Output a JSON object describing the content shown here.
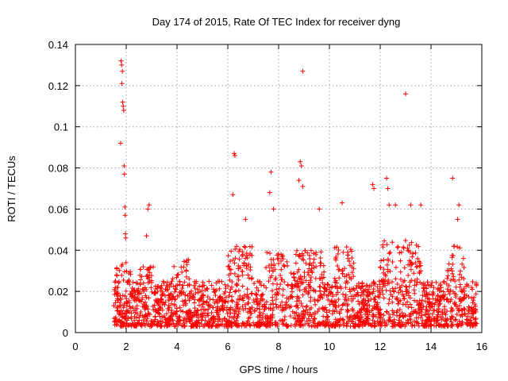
{
  "chart_data": {
    "type": "scatter",
    "title": "Day 174 of 2015, Rate Of TEC Index for receiver dyng",
    "xlabel": "GPS time / hours",
    "ylabel": "ROTI / TECUs",
    "xlim": [
      0,
      16
    ],
    "ylim": [
      0,
      0.14
    ],
    "xticks": [
      0,
      2,
      4,
      6,
      8,
      10,
      12,
      14,
      16
    ],
    "yticks": [
      0,
      0.02,
      0.04,
      0.06,
      0.08,
      0.1,
      0.12,
      0.14
    ],
    "xtick_labels": [
      "0",
      "2",
      "4",
      "6",
      "8",
      "10",
      "12",
      "14",
      "16"
    ],
    "ytick_labels": [
      "0",
      "0.02",
      "0.04",
      "0.06",
      "0.08",
      "0.1",
      "0.12",
      "0.14"
    ],
    "grid": true,
    "marker": "+",
    "color": "#ff0000",
    "series": [
      {
        "name": "ROTI",
        "points": [
          [
            1.8,
            0.132
          ],
          [
            1.82,
            0.13
          ],
          [
            1.85,
            0.127
          ],
          [
            1.83,
            0.121
          ],
          [
            1.86,
            0.112
          ],
          [
            1.88,
            0.11
          ],
          [
            1.9,
            0.108
          ],
          [
            1.78,
            0.092
          ],
          [
            1.92,
            0.081
          ],
          [
            1.93,
            0.077
          ],
          [
            1.95,
            0.061
          ],
          [
            1.96,
            0.057
          ],
          [
            1.97,
            0.048
          ],
          [
            1.98,
            0.046
          ],
          [
            2.9,
            0.062
          ],
          [
            2.85,
            0.06
          ],
          [
            2.8,
            0.047
          ],
          [
            6.25,
            0.087
          ],
          [
            6.28,
            0.086
          ],
          [
            6.2,
            0.067
          ],
          [
            6.7,
            0.055
          ],
          [
            7.7,
            0.078
          ],
          [
            7.65,
            0.068
          ],
          [
            7.8,
            0.06
          ],
          [
            8.95,
            0.127
          ],
          [
            8.85,
            0.083
          ],
          [
            8.9,
            0.081
          ],
          [
            8.8,
            0.074
          ],
          [
            8.95,
            0.071
          ],
          [
            9.6,
            0.06
          ],
          [
            10.5,
            0.063
          ],
          [
            11.7,
            0.072
          ],
          [
            11.75,
            0.07
          ],
          [
            12.25,
            0.075
          ],
          [
            12.3,
            0.07
          ],
          [
            12.35,
            0.062
          ],
          [
            12.6,
            0.062
          ],
          [
            13.0,
            0.116
          ],
          [
            13.2,
            0.062
          ],
          [
            13.6,
            0.062
          ],
          [
            14.85,
            0.075
          ],
          [
            15.1,
            0.062
          ],
          [
            15.05,
            0.055
          ]
        ],
        "dense_band": {
          "x_range": [
            1.5,
            15.8
          ],
          "y_range": [
            0.003,
            0.035
          ],
          "comment": "continuous dense scatter band"
        }
      }
    ]
  }
}
